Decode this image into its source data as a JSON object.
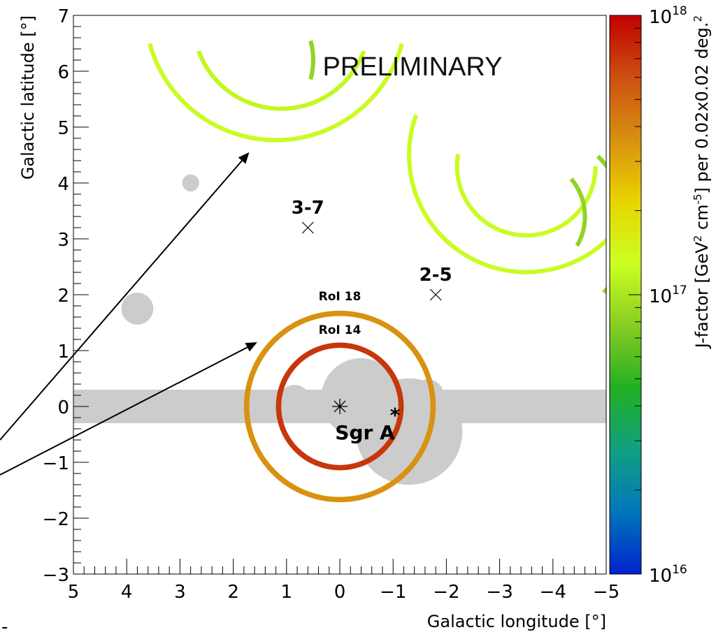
{
  "chart_data": {
    "type": "heatmap",
    "title": "",
    "watermark": "PRELIMINARY",
    "xlabel": "Galactic longitude [°]",
    "ylabel": "Galactic latitude [°]",
    "xlim": [
      5,
      -5
    ],
    "ylim": [
      -3,
      7
    ],
    "x_ticks": [
      5,
      4,
      3,
      2,
      1,
      0,
      -1,
      -2,
      -3,
      -4,
      -5
    ],
    "x_tick_labels": [
      "5",
      "4",
      "3",
      "2",
      "1",
      "0",
      "−1",
      "−2",
      "−3",
      "−4",
      "−5"
    ],
    "y_ticks": [
      -3,
      -2,
      -1,
      0,
      1,
      2,
      3,
      4,
      5,
      6,
      7
    ],
    "y_tick_labels": [
      "−3",
      "−2",
      "−1",
      "0",
      "1",
      "2",
      "3",
      "4",
      "5",
      "6",
      "7"
    ],
    "grid": false,
    "colorbar": {
      "label_parts": [
        "J-factor [GeV",
        "2",
        " cm",
        "-5",
        "] per 0.02x0.02 deg.",
        "2"
      ],
      "scale": "log",
      "ticks": [
        {
          "exp": 16,
          "base": "10",
          "sup": "16"
        },
        {
          "exp": 17,
          "base": "10",
          "sup": "17"
        },
        {
          "exp": 18,
          "base": "10",
          "sup": "18"
        }
      ],
      "colors": [
        "#0022cc",
        "#0077bb",
        "#10a080",
        "#22b022",
        "#88cc22",
        "#ccff22",
        "#e8d400",
        "#d89010",
        "#cc5010",
        "#c00000"
      ]
    },
    "rings": [
      {
        "name": "RoI 18",
        "l": 0.0,
        "b": 0.0,
        "r": 1.75,
        "start_deg": 0,
        "end_deg": 360,
        "log_j": 17.55,
        "width": 0.1
      },
      {
        "name": "RoI 14",
        "l": 0.0,
        "b": 0.0,
        "r": 1.15,
        "start_deg": 0,
        "end_deg": 360,
        "log_j": 17.85,
        "width": 0.1
      },
      {
        "name": "",
        "l": 1.2,
        "b": 7.1,
        "r": 2.45,
        "start_deg": 195,
        "end_deg": 345,
        "log_j": 17.1,
        "width": 0.08
      },
      {
        "name": "",
        "l": 1.1,
        "b": 6.9,
        "r": 1.65,
        "start_deg": 200,
        "end_deg": 340,
        "log_j": 17.08,
        "width": 0.08
      },
      {
        "name": "",
        "l": -3.5,
        "b": 4.5,
        "r": 2.2,
        "start_deg": 160,
        "end_deg": 360,
        "log_j": 17.1,
        "width": 0.08
      },
      {
        "name": "",
        "l": -3.5,
        "b": 4.3,
        "r": 1.3,
        "start_deg": 170,
        "end_deg": 360,
        "log_j": 17.1,
        "width": 0.08
      },
      {
        "name": "",
        "l": -3.5,
        "b": 3.2,
        "r": 1.9,
        "start_deg": -40,
        "end_deg": 45,
        "log_j": 16.92,
        "width": 0.08
      },
      {
        "name": "",
        "l": -3.5,
        "b": 3.4,
        "r": 1.1,
        "start_deg": -30,
        "end_deg": 40,
        "log_j": 16.92,
        "width": 0.08
      },
      {
        "name": "",
        "l": 1.9,
        "b": 6.2,
        "r": 1.4,
        "start_deg": -15,
        "end_deg": 15,
        "log_j": 16.92,
        "width": 0.08
      }
    ],
    "masks": [
      {
        "kind": "band",
        "b_min": -0.3,
        "b_max": 0.3
      },
      {
        "kind": "disk",
        "l": 3.8,
        "b": 1.75,
        "r": 0.3
      },
      {
        "kind": "disk",
        "l": 2.8,
        "b": 4.0,
        "r": 0.16
      },
      {
        "kind": "disk",
        "l": -0.4,
        "b": 0.15,
        "r": 0.75
      },
      {
        "kind": "disk",
        "l": -1.3,
        "b": -0.45,
        "r": 1.0
      },
      {
        "kind": "disk",
        "l": 1.3,
        "b": 0.0,
        "r": 0.25
      },
      {
        "kind": "disk",
        "l": 0.85,
        "b": 0.1,
        "r": 0.3
      },
      {
        "kind": "disk",
        "l": -1.65,
        "b": 0.2,
        "r": 0.3
      }
    ],
    "sources": [
      {
        "label": "3-7",
        "l": 0.6,
        "b": 3.2
      },
      {
        "label": "2-5",
        "l": -1.8,
        "b": 2.0
      }
    ],
    "center": {
      "label": "Sgr A",
      "sup": "*",
      "l": 0.0,
      "b": 0.0
    },
    "arrows": [
      {
        "to_l": 1.7,
        "to_b": 4.55
      },
      {
        "to_l": 1.55,
        "to_b": 1.15
      }
    ],
    "footnote": "-"
  }
}
